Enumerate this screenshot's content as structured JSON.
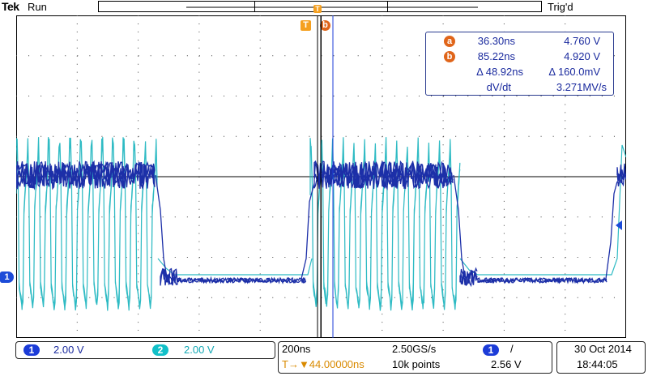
{
  "header": {
    "brand": "Tek",
    "run_status": "Run",
    "trigger_status": "Trig'd"
  },
  "markers": {
    "trigger_marker_label": "T",
    "cursor_a_label": "a",
    "cursor_b_label": "b",
    "channel1_marker_label": "1"
  },
  "cursor_readout": {
    "a": {
      "badge": "a",
      "time": "36.30ns",
      "volt": "4.760 V"
    },
    "b": {
      "badge": "b",
      "time": "85.22ns",
      "volt": "4.920 V"
    },
    "delta": {
      "time": "Δ 48.92ns",
      "volt": "Δ 160.0mV"
    },
    "dvdt": {
      "label": "dV/dt",
      "value": "3.271MV/s"
    }
  },
  "channels": [
    {
      "badge": "1",
      "scale": "2.00 V",
      "color": "#1c3cd8"
    },
    {
      "badge": "2",
      "scale": "2.00 V",
      "color": "#12c0c8"
    }
  ],
  "horizontal": {
    "time_per_div": "200ns",
    "sample_rate": "2.50GS/s",
    "trigger_position": "T→▼44.00000ns",
    "record_length": "10k points"
  },
  "trigger": {
    "source_badge": "1",
    "slope_symbol": "/",
    "level": "2.56 V"
  },
  "datetime": {
    "date": "30 Oct  2014",
    "time": "18:44:05"
  },
  "colors": {
    "ch1": "#1c2fa8",
    "ch2": "#18b4be",
    "cursor": "#1a2a9e",
    "cursor_badge": "#e0651a",
    "trigger_marker": "#f5a020",
    "trigger_readout": "#d98a00"
  }
}
